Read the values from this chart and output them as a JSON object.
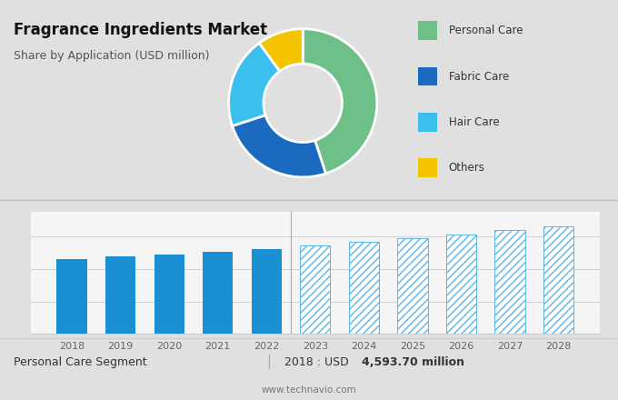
{
  "title": "Fragrance Ingredients Market",
  "subtitle": "Share by Application (USD million)",
  "pie_sizes": [
    45,
    25,
    20,
    10
  ],
  "pie_colors": [
    "#6dc087",
    "#1a6bbf",
    "#3bbfef",
    "#f5c400"
  ],
  "legend_labels": [
    "Personal Care",
    "Fabric Care",
    "Hair Care",
    "Others"
  ],
  "legend_colors": [
    "#6dc087",
    "#1a6bbf",
    "#3bbfef",
    "#f5c400"
  ],
  "bar_years": [
    2018,
    2019,
    2020,
    2021,
    2022,
    2023,
    2024,
    2025,
    2026,
    2027,
    2028
  ],
  "bar_values": [
    4593.7,
    4780,
    4900,
    5050,
    5220,
    5430,
    5650,
    5880,
    6120,
    6370,
    6640
  ],
  "bar_color_solid": "#1a8fd1",
  "bar_color_hatch": "#5ab4e8",
  "hatch_pattern": "////",
  "top_bg": "#e0e0e0",
  "bottom_bg": "#f5f5f5",
  "footer_left": "Personal Care Segment",
  "footer_value_prefix": "2018 : USD ",
  "footer_value_bold": "4,593.70 million",
  "footer_url": "www.technavio.com",
  "grid_color": "#d0d0d0",
  "ylim_min": 0,
  "ylim_max": 7500
}
